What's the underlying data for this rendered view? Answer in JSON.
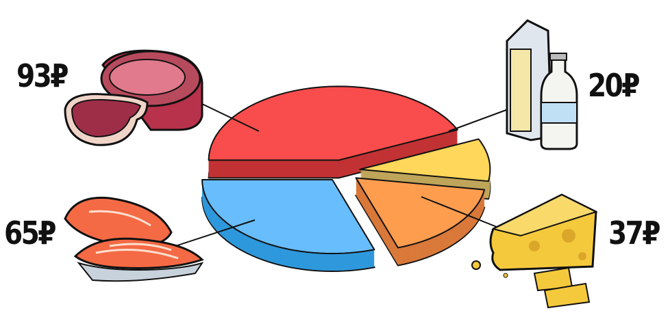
{
  "chart_data": {
    "type": "pie",
    "style": "3d-exploded",
    "categories": [
      "meat",
      "milk",
      "cheese",
      "fish"
    ],
    "values": [
      93,
      20,
      37,
      65
    ],
    "data_labels": [
      "93₽",
      "20₽",
      "37₽",
      "65₽"
    ],
    "icons": [
      "meat-steak-icon",
      "milk-carton-bottle-icon",
      "cheese-wedge-icon",
      "salmon-fillet-icon"
    ],
    "colors": [
      "#f94c4c",
      "#ffd75a",
      "#ff9d4f",
      "#68bdfc"
    ],
    "side_colors": [
      "#c23234",
      "#bfa55a",
      "#d9793a",
      "#2f98dc"
    ],
    "legend": "none"
  }
}
